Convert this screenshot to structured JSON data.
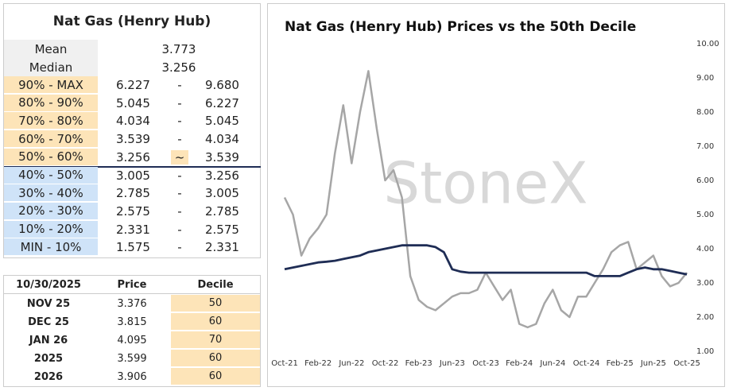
{
  "decile_table": {
    "title": "Nat Gas (Henry Hub)",
    "summary": [
      [
        "Mean",
        "3.773"
      ],
      [
        "Median",
        "3.256"
      ]
    ],
    "rows": [
      [
        "90% - MAX",
        "6.227",
        "-",
        "9.680"
      ],
      [
        "80% - 90%",
        "5.045",
        "-",
        "6.227"
      ],
      [
        "70% - 80%",
        "4.034",
        "-",
        "5.045"
      ],
      [
        "60% - 70%",
        "3.539",
        "-",
        "4.034"
      ],
      [
        "50% - 60%",
        "3.256",
        "~",
        "3.539"
      ],
      [
        "40% - 50%",
        "3.005",
        "-",
        "3.256"
      ],
      [
        "30% - 40%",
        "2.785",
        "-",
        "3.005"
      ],
      [
        "20% - 30%",
        "2.575",
        "-",
        "2.785"
      ],
      [
        "10% - 20%",
        "2.331",
        "-",
        "2.575"
      ],
      [
        "MIN - 10%",
        "1.575",
        "-",
        "2.331"
      ]
    ]
  },
  "price_table": {
    "header": [
      "10/30/2025",
      "Price",
      "Decile"
    ],
    "rows": [
      [
        "NOV 25",
        "3.376",
        "50"
      ],
      [
        "DEC 25",
        "3.815",
        "60"
      ],
      [
        "JAN 26",
        "4.095",
        "70"
      ],
      [
        "2025",
        "3.599",
        "60"
      ],
      [
        "2026",
        "3.906",
        "60"
      ]
    ]
  },
  "chart_data": {
    "type": "line",
    "title": "Nat Gas (Henry Hub) Prices vs the 50th Decile",
    "watermark": "StoneX",
    "x": [
      "Oct-21",
      null,
      null,
      null,
      "Feb-22",
      null,
      null,
      null,
      "Jun-22",
      null,
      null,
      null,
      "Oct-22",
      null,
      null,
      null,
      "Feb-23",
      null,
      null,
      null,
      "Jun-23",
      null,
      null,
      null,
      "Oct-23",
      null,
      null,
      null,
      "Feb-24",
      null,
      null,
      null,
      "Jun-24",
      null,
      null,
      null,
      "Oct-24",
      null,
      null,
      null,
      "Feb-25",
      null,
      null,
      null,
      "Jun-25",
      null,
      null,
      null,
      "Oct-25"
    ],
    "series": [
      {
        "color": "#a6a6a6",
        "values": [
          5.5,
          5.0,
          3.8,
          4.3,
          4.6,
          5.0,
          6.8,
          8.2,
          6.5,
          8.0,
          9.2,
          7.5,
          6.0,
          6.3,
          5.5,
          3.2,
          2.5,
          2.3,
          2.2,
          2.4,
          2.6,
          2.7,
          2.7,
          2.8,
          3.3,
          2.9,
          2.5,
          2.8,
          1.8,
          1.7,
          1.8,
          2.4,
          2.8,
          2.2,
          2.0,
          2.6,
          2.6,
          3.0,
          3.4,
          3.9,
          4.1,
          4.2,
          3.4,
          3.6,
          3.8,
          3.2,
          2.9,
          3.0,
          3.3
        ]
      },
      {
        "color": "#1f2d55",
        "values": [
          3.4,
          3.45,
          3.5,
          3.55,
          3.6,
          3.62,
          3.65,
          3.7,
          3.75,
          3.8,
          3.9,
          3.95,
          4.0,
          4.05,
          4.1,
          4.1,
          4.1,
          4.1,
          4.05,
          3.9,
          3.4,
          3.33,
          3.3,
          3.3,
          3.3,
          3.3,
          3.3,
          3.3,
          3.3,
          3.3,
          3.3,
          3.3,
          3.3,
          3.3,
          3.3,
          3.3,
          3.3,
          3.2,
          3.2,
          3.2,
          3.2,
          3.3,
          3.4,
          3.45,
          3.4,
          3.4,
          3.35,
          3.3,
          3.25
        ]
      }
    ],
    "ylim": [
      1,
      10
    ],
    "yticks": [
      {
        "value": 1,
        "label": "1.00"
      },
      {
        "value": 2,
        "label": "2.00"
      },
      {
        "value": 3,
        "label": "3.00"
      },
      {
        "value": 4,
        "label": "4.00"
      },
      {
        "value": 5,
        "label": "5.00"
      },
      {
        "value": 6,
        "label": "6.00"
      },
      {
        "value": 7,
        "label": "7.00"
      },
      {
        "value": 8,
        "label": "8.00"
      },
      {
        "value": 9,
        "label": "9.00"
      },
      {
        "value": 10,
        "label": "10.00"
      }
    ]
  }
}
